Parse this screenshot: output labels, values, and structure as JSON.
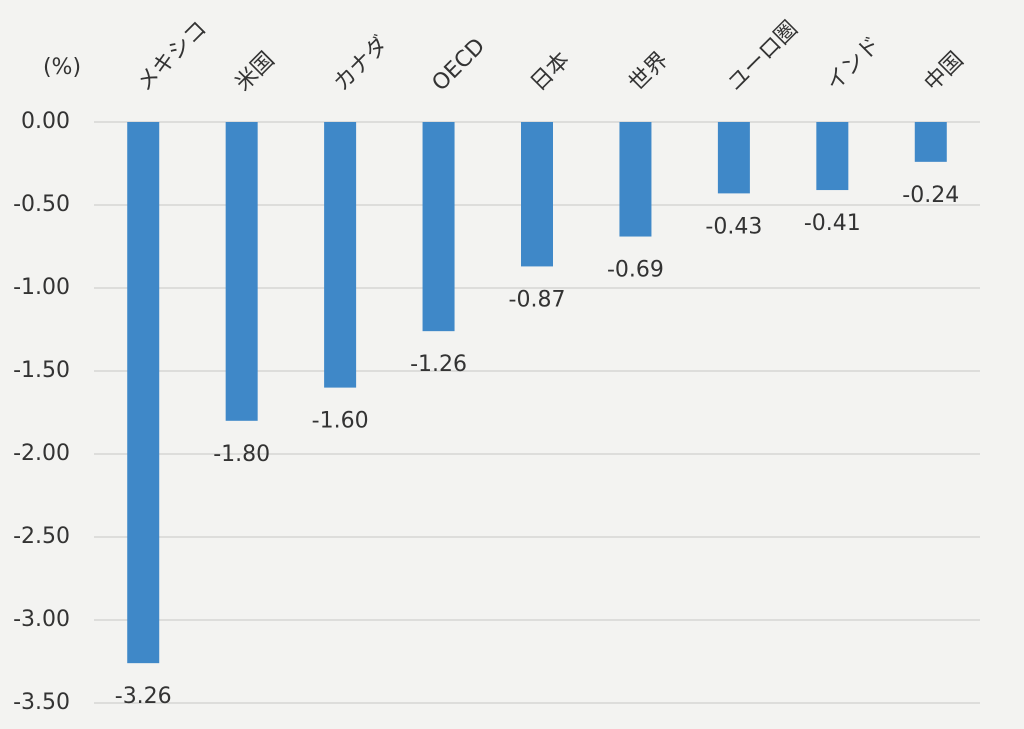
{
  "chart_data": {
    "type": "bar",
    "y_label": "(%)",
    "categories": [
      "メキシコ",
      "米国",
      "カナダ",
      "OECD",
      "日本",
      "世界",
      "ユーロ圏",
      "インド",
      "中国"
    ],
    "values": [
      -3.26,
      -1.8,
      -1.6,
      -1.26,
      -0.87,
      -0.69,
      -0.43,
      -0.41,
      -0.24
    ],
    "value_labels": [
      "-3.26",
      "-1.80",
      "-1.60",
      "-1.26",
      "-0.87",
      "-0.69",
      "-0.43",
      "-0.41",
      "-0.24"
    ],
    "color": "#3f88c8",
    "ylim": [
      -3.5,
      0
    ],
    "yticks": [
      {
        "value": 0,
        "label": "0.00"
      },
      {
        "value": -0.5,
        "label": "-0.50"
      },
      {
        "value": -1,
        "label": "-1.00"
      },
      {
        "value": -1.5,
        "label": "-1.50"
      },
      {
        "value": -2,
        "label": "-2.00"
      },
      {
        "value": -2.5,
        "label": "-2.50"
      },
      {
        "value": -3,
        "label": "-3.00"
      },
      {
        "value": -3.5,
        "label": "-3.50"
      }
    ],
    "grid": true
  }
}
